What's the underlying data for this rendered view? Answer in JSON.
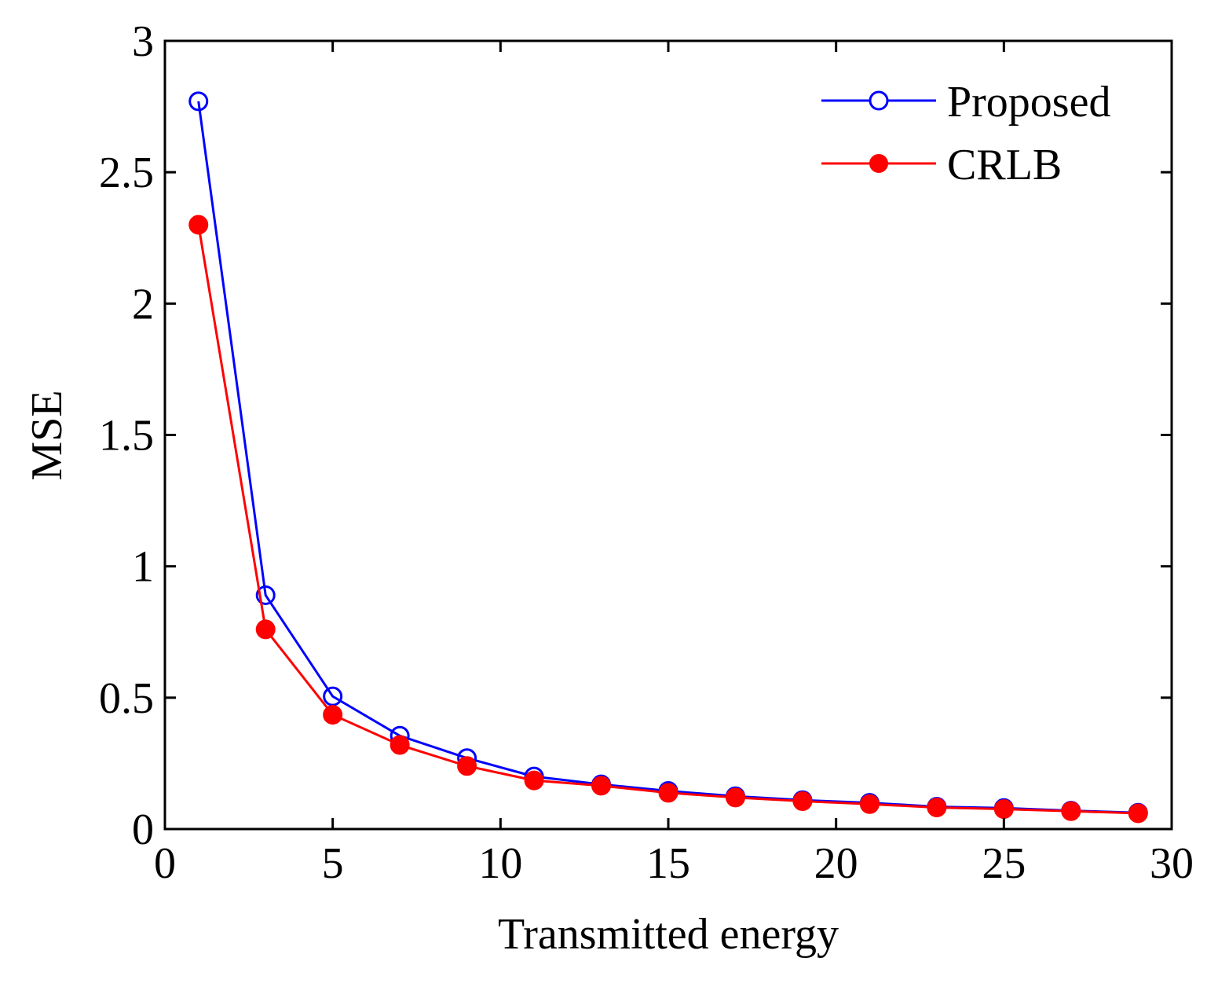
{
  "chart_data": {
    "type": "line",
    "title": "",
    "xlabel": "Transmitted energy",
    "ylabel": "MSE",
    "xlim": [
      0,
      30
    ],
    "ylim": [
      0,
      3
    ],
    "x_ticks": [
      0,
      5,
      10,
      15,
      20,
      25,
      30
    ],
    "y_ticks": [
      0,
      0.5,
      1,
      1.5,
      2,
      2.5,
      3
    ],
    "x_tick_labels": [
      "0",
      "5",
      "10",
      "15",
      "20",
      "25",
      "30"
    ],
    "y_tick_labels": [
      "0",
      "0.5",
      "1",
      "1.5",
      "2",
      "2.5",
      "3"
    ],
    "grid": false,
    "legend_position": "top-right",
    "x": [
      1,
      3,
      5,
      7,
      9,
      11,
      13,
      15,
      17,
      19,
      21,
      23,
      25,
      27,
      29
    ],
    "series": [
      {
        "name": "Proposed",
        "color": "#0000ff",
        "marker": "open-circle",
        "values": [
          2.77,
          0.89,
          0.505,
          0.355,
          0.27,
          0.2,
          0.17,
          0.145,
          0.125,
          0.11,
          0.1,
          0.085,
          0.08,
          0.07,
          0.062
        ]
      },
      {
        "name": "CRLB",
        "color": "#ff0000",
        "marker": "filled-circle",
        "values": [
          2.3,
          0.76,
          0.435,
          0.32,
          0.24,
          0.185,
          0.165,
          0.138,
          0.12,
          0.106,
          0.095,
          0.082,
          0.076,
          0.068,
          0.06
        ]
      }
    ]
  }
}
